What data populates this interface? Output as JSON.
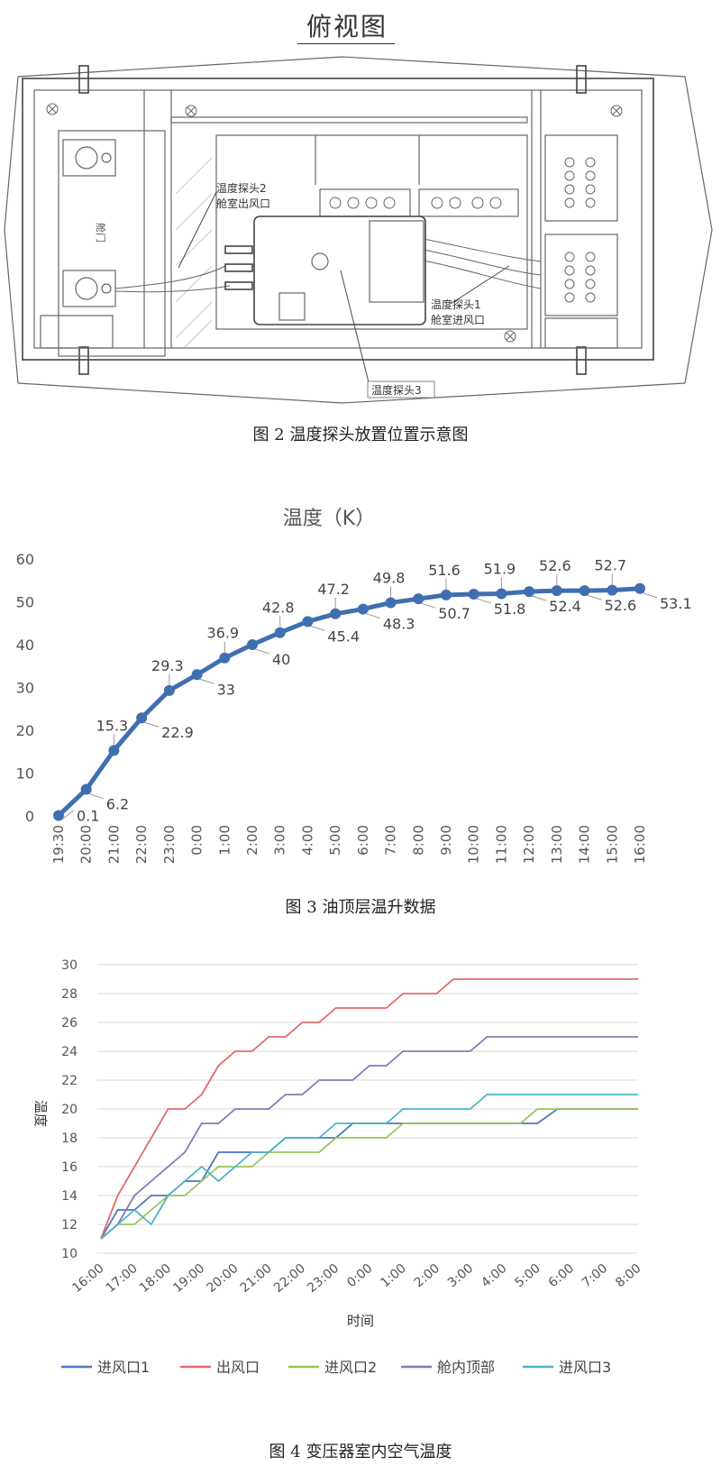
{
  "figure2": {
    "title": "俯视图",
    "caption": "图 2 温度探头放置位置示意图",
    "labels": {
      "probe2": "温度探头2",
      "probe2_loc": "舱室出风口",
      "probe1": "温度探头1",
      "probe1_loc": "舱室进风口",
      "probe3": "温度探头3",
      "left_box": "舱门"
    }
  },
  "figure3": {
    "caption": "图 3 油顶层温升数据",
    "chart_data": {
      "type": "line",
      "title": "温度（K）",
      "xlabel": "",
      "ylabel": "",
      "categories": [
        "19:30",
        "20:00",
        "21:00",
        "22:00",
        "23:00",
        "0:00",
        "1:00",
        "2:00",
        "3:00",
        "4:00",
        "5:00",
        "6:00",
        "7:00",
        "8:00",
        "9:00",
        "10:00",
        "11:00",
        "12:00",
        "13:00",
        "14:00",
        "15:00",
        "16:00"
      ],
      "values": [
        0.1,
        6.2,
        15.3,
        22.9,
        29.3,
        33,
        36.9,
        40,
        42.8,
        45.4,
        47.2,
        48.3,
        49.8,
        50.7,
        51.6,
        51.8,
        51.9,
        52.4,
        52.6,
        52.6,
        52.7,
        53.1
      ],
      "ylim": [
        0,
        60
      ],
      "yticks": [
        "0",
        "10",
        "20",
        "30",
        "40",
        "50",
        "60"
      ],
      "color": "#3f6fb0",
      "grid": false
    }
  },
  "figure4": {
    "caption": "图 4 变压器室内空气温度",
    "chart_data": {
      "type": "line",
      "title": "",
      "xlabel": "时间",
      "ylabel": "温度",
      "categories": [
        "16:00",
        "17:00",
        "18:00",
        "19:00",
        "20:00",
        "21:00",
        "22:00",
        "23:00",
        "0:00",
        "1:00",
        "2:00",
        "3:00",
        "4:00",
        "5:00",
        "6:00",
        "7:00",
        "8:00"
      ],
      "ylim": [
        10,
        30
      ],
      "yticks": [
        "10",
        "12",
        "14",
        "16",
        "18",
        "20",
        "22",
        "24",
        "26",
        "28",
        "30"
      ],
      "grid": true,
      "legend": "bottom",
      "series": [
        {
          "name": "进风口1",
          "color": "#4a78c0",
          "points": [
            [
              0,
              11
            ],
            [
              0.5,
              13
            ],
            [
              1,
              13
            ],
            [
              1.5,
              14
            ],
            [
              2,
              14
            ],
            [
              2.5,
              15
            ],
            [
              3,
              15
            ],
            [
              3.5,
              17
            ],
            [
              4,
              17
            ],
            [
              4.5,
              17
            ],
            [
              5,
              17
            ],
            [
              5.5,
              18
            ],
            [
              6,
              18
            ],
            [
              6.5,
              18
            ],
            [
              7,
              18
            ],
            [
              7.5,
              19
            ],
            [
              8,
              19
            ],
            [
              8.5,
              19
            ],
            [
              9,
              19
            ],
            [
              9.5,
              19
            ],
            [
              10,
              19
            ],
            [
              10.5,
              19
            ],
            [
              11,
              19
            ],
            [
              11.5,
              19
            ],
            [
              12,
              19
            ],
            [
              12.5,
              19
            ],
            [
              13,
              19
            ],
            [
              13.6,
              20
            ],
            [
              14,
              20
            ],
            [
              16,
              20
            ]
          ]
        },
        {
          "name": "出风口",
          "color": "#e06b6b",
          "points": [
            [
              0,
              11
            ],
            [
              0.5,
              14
            ],
            [
              1,
              16
            ],
            [
              1.5,
              18
            ],
            [
              2,
              20
            ],
            [
              2.5,
              20
            ],
            [
              3,
              21
            ],
            [
              3.5,
              23
            ],
            [
              4,
              24
            ],
            [
              4.5,
              24
            ],
            [
              5,
              25
            ],
            [
              5.5,
              25
            ],
            [
              6,
              26
            ],
            [
              6.5,
              26
            ],
            [
              7,
              27
            ],
            [
              7.5,
              27
            ],
            [
              8,
              27
            ],
            [
              8.5,
              27
            ],
            [
              9,
              28
            ],
            [
              9.5,
              28
            ],
            [
              10,
              28
            ],
            [
              10.5,
              29
            ],
            [
              16,
              29
            ]
          ]
        },
        {
          "name": "进风口2",
          "color": "#9cc25a",
          "points": [
            [
              0,
              11
            ],
            [
              0.5,
              12
            ],
            [
              1,
              12
            ],
            [
              1.5,
              13
            ],
            [
              2,
              14
            ],
            [
              2.5,
              14
            ],
            [
              3,
              15
            ],
            [
              3.5,
              16
            ],
            [
              4,
              16
            ],
            [
              4.5,
              16
            ],
            [
              5,
              17
            ],
            [
              5.5,
              17
            ],
            [
              6,
              17
            ],
            [
              6.5,
              17
            ],
            [
              7,
              18
            ],
            [
              7.5,
              18
            ],
            [
              8,
              18
            ],
            [
              8.5,
              18
            ],
            [
              9,
              19
            ],
            [
              12.5,
              19
            ],
            [
              13,
              20
            ],
            [
              16,
              20
            ]
          ]
        },
        {
          "name": "舱内顶部",
          "color": "#8a77b5",
          "points": [
            [
              0,
              11
            ],
            [
              0.5,
              12
            ],
            [
              1,
              14
            ],
            [
              1.5,
              15
            ],
            [
              2,
              16
            ],
            [
              2.5,
              17
            ],
            [
              3,
              19
            ],
            [
              3.5,
              19
            ],
            [
              4,
              20
            ],
            [
              4.5,
              20
            ],
            [
              5,
              20
            ],
            [
              5.5,
              21
            ],
            [
              6,
              21
            ],
            [
              6.5,
              22
            ],
            [
              7,
              22
            ],
            [
              7.5,
              22
            ],
            [
              8,
              23
            ],
            [
              8.5,
              23
            ],
            [
              9,
              24
            ],
            [
              11,
              24
            ],
            [
              11.5,
              25
            ],
            [
              16,
              25
            ]
          ]
        },
        {
          "name": "进风口3",
          "color": "#4bb3c9",
          "points": [
            [
              0,
              11
            ],
            [
              0.5,
              12
            ],
            [
              1,
              13
            ],
            [
              1.5,
              12
            ],
            [
              2,
              14
            ],
            [
              2.5,
              15
            ],
            [
              3,
              16
            ],
            [
              3.5,
              15
            ],
            [
              4,
              16
            ],
            [
              4.5,
              17
            ],
            [
              5,
              17
            ],
            [
              5.5,
              18
            ],
            [
              6,
              18
            ],
            [
              6.5,
              18
            ],
            [
              7,
              19
            ],
            [
              7.5,
              19
            ],
            [
              8,
              19
            ],
            [
              8.5,
              19
            ],
            [
              9,
              20
            ],
            [
              11,
              20
            ],
            [
              11.5,
              21
            ],
            [
              16,
              21
            ]
          ]
        }
      ]
    }
  }
}
